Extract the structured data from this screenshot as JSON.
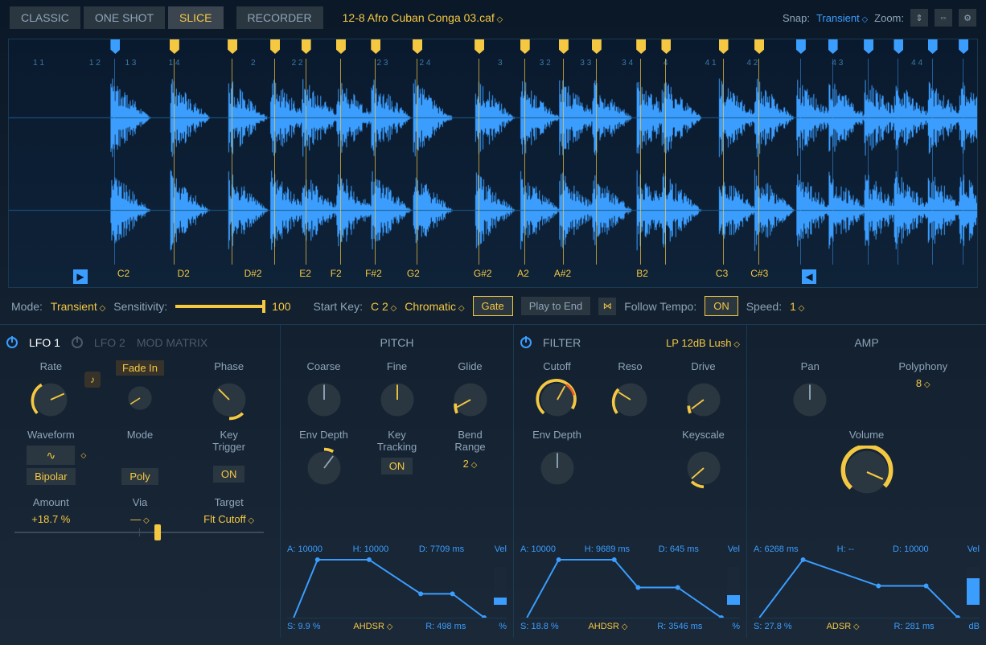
{
  "topbar": {
    "modes": [
      "CLASSIC",
      "ONE SHOT",
      "SLICE",
      "RECORDER"
    ],
    "active_mode": 2,
    "filename": "12-8 Afro Cuban Conga 03.caf",
    "snap_label": "Snap:",
    "snap_value": "Transient",
    "zoom_label": "Zoom:"
  },
  "waveform": {
    "markers": [
      {
        "x": 10.5,
        "color": "blue"
      },
      {
        "x": 16.6,
        "color": "yellow"
      },
      {
        "x": 22.6,
        "color": "yellow"
      },
      {
        "x": 27.0,
        "color": "yellow"
      },
      {
        "x": 30.2,
        "color": "yellow"
      },
      {
        "x": 33.8,
        "color": "yellow"
      },
      {
        "x": 37.4,
        "color": "yellow"
      },
      {
        "x": 41.7,
        "color": "yellow"
      },
      {
        "x": 48.1,
        "color": "yellow"
      },
      {
        "x": 52.8,
        "color": "yellow"
      },
      {
        "x": 56.8,
        "color": "yellow"
      },
      {
        "x": 60.2,
        "color": "yellow"
      },
      {
        "x": 64.8,
        "color": "yellow"
      },
      {
        "x": 67.4,
        "color": "yellow"
      },
      {
        "x": 73.3,
        "color": "yellow"
      },
      {
        "x": 77.0,
        "color": "yellow"
      },
      {
        "x": 81.3,
        "color": "blue"
      },
      {
        "x": 84.6,
        "color": "blue"
      },
      {
        "x": 88.3,
        "color": "blue"
      },
      {
        "x": 91.4,
        "color": "blue"
      },
      {
        "x": 94.9,
        "color": "blue"
      },
      {
        "x": 98.1,
        "color": "blue"
      }
    ],
    "beat_labels": [
      {
        "x": 2.5,
        "text": "1 1"
      },
      {
        "x": 8.3,
        "text": "1 2"
      },
      {
        "x": 12.0,
        "text": "1 3"
      },
      {
        "x": 16.5,
        "text": "1 4"
      },
      {
        "x": 25.0,
        "text": "2"
      },
      {
        "x": 29.2,
        "text": "2 2"
      },
      {
        "x": 38.0,
        "text": "2 3"
      },
      {
        "x": 42.4,
        "text": "2 4"
      },
      {
        "x": 50.5,
        "text": "3"
      },
      {
        "x": 54.8,
        "text": "3 2"
      },
      {
        "x": 59.0,
        "text": "3 3"
      },
      {
        "x": 63.3,
        "text": "3 4"
      },
      {
        "x": 67.6,
        "text": "4"
      },
      {
        "x": 71.9,
        "text": "4 1"
      },
      {
        "x": 76.2,
        "text": "4 2"
      },
      {
        "x": 85.0,
        "text": "4 3"
      },
      {
        "x": 93.2,
        "text": "4 4"
      }
    ],
    "key_labels": [
      {
        "x": 11.2,
        "text": "C2"
      },
      {
        "x": 17.4,
        "text": "D2"
      },
      {
        "x": 24.3,
        "text": "D#2"
      },
      {
        "x": 30.0,
        "text": "E2"
      },
      {
        "x": 33.2,
        "text": "F2"
      },
      {
        "x": 36.8,
        "text": "F#2"
      },
      {
        "x": 41.1,
        "text": "G2"
      },
      {
        "x": 48.0,
        "text": "G#2"
      },
      {
        "x": 52.5,
        "text": "A2"
      },
      {
        "x": 56.3,
        "text": "A#2"
      },
      {
        "x": 64.8,
        "text": "B2"
      },
      {
        "x": 73.0,
        "text": "C3"
      },
      {
        "x": 76.6,
        "text": "C#3"
      }
    ]
  },
  "slice_controls": {
    "mode_label": "Mode:",
    "mode_value": "Transient",
    "sensitivity_label": "Sensitivity:",
    "sensitivity_value": "100",
    "start_key_label": "Start Key:",
    "start_key_value": "C 2",
    "chromatic": "Chromatic",
    "gate": "Gate",
    "play_to_end": "Play to End",
    "follow_tempo_label": "Follow Tempo:",
    "follow_tempo_value": "ON",
    "speed_label": "Speed:",
    "speed_value": "1"
  },
  "lfo": {
    "tab1": "LFO 1",
    "tab2": "LFO 2",
    "tab3": "MOD MATRIX",
    "rate_label": "Rate",
    "fadein_label": "Fade In",
    "phase_label": "Phase",
    "waveform_label": "Waveform",
    "bipolar": "Bipolar",
    "mode_label": "Mode",
    "mode_value": "Poly",
    "keytrigger_label": "Key\nTrigger",
    "keytrigger_value": "ON",
    "amount_label": "Amount",
    "amount_value": "+18.7 %",
    "via_label": "Via",
    "via_value": "—",
    "target_label": "Target",
    "target_value": "Flt Cutoff"
  },
  "pitch": {
    "title": "PITCH",
    "coarse": "Coarse",
    "fine": "Fine",
    "glide": "Glide",
    "envdepth": "Env Depth",
    "keytrack_label": "Key\nTracking",
    "keytrack_value": "ON",
    "bendrange_label": "Bend\nRange",
    "bendrange_value": "2",
    "env": {
      "A": "A: 10000",
      "H": "H: 10000",
      "D": "D: 7709 ms",
      "S": "S: 9.9 %",
      "mode": "AHDSR",
      "R": "R: 498 ms",
      "vel": "Vel",
      "unit": "%"
    }
  },
  "filter": {
    "title": "FILTER",
    "type": "LP 12dB Lush",
    "cutoff": "Cutoff",
    "reso": "Reso",
    "drive": "Drive",
    "envdepth": "Env Depth",
    "keyscale": "Keyscale",
    "env": {
      "A": "A: 10000",
      "H": "H: 9689 ms",
      "D": "D: 645 ms",
      "S": "S: 18.8 %",
      "mode": "AHDSR",
      "R": "R: 3546 ms",
      "vel": "Vel",
      "unit": "%"
    }
  },
  "amp": {
    "title": "AMP",
    "pan": "Pan",
    "polyphony_label": "Polyphony",
    "polyphony_value": "8",
    "volume": "Volume",
    "env": {
      "A": "A: 6268 ms",
      "H": "H: --",
      "D": "D: 10000",
      "S": "S: 27.8 %",
      "mode": "ADSR",
      "R": "R: 281 ms",
      "vel": "Vel",
      "unit": "dB"
    }
  },
  "colors": {
    "accent": "#f5c842",
    "blue": "#3b9eff",
    "bg_dark": "#0a1828"
  }
}
